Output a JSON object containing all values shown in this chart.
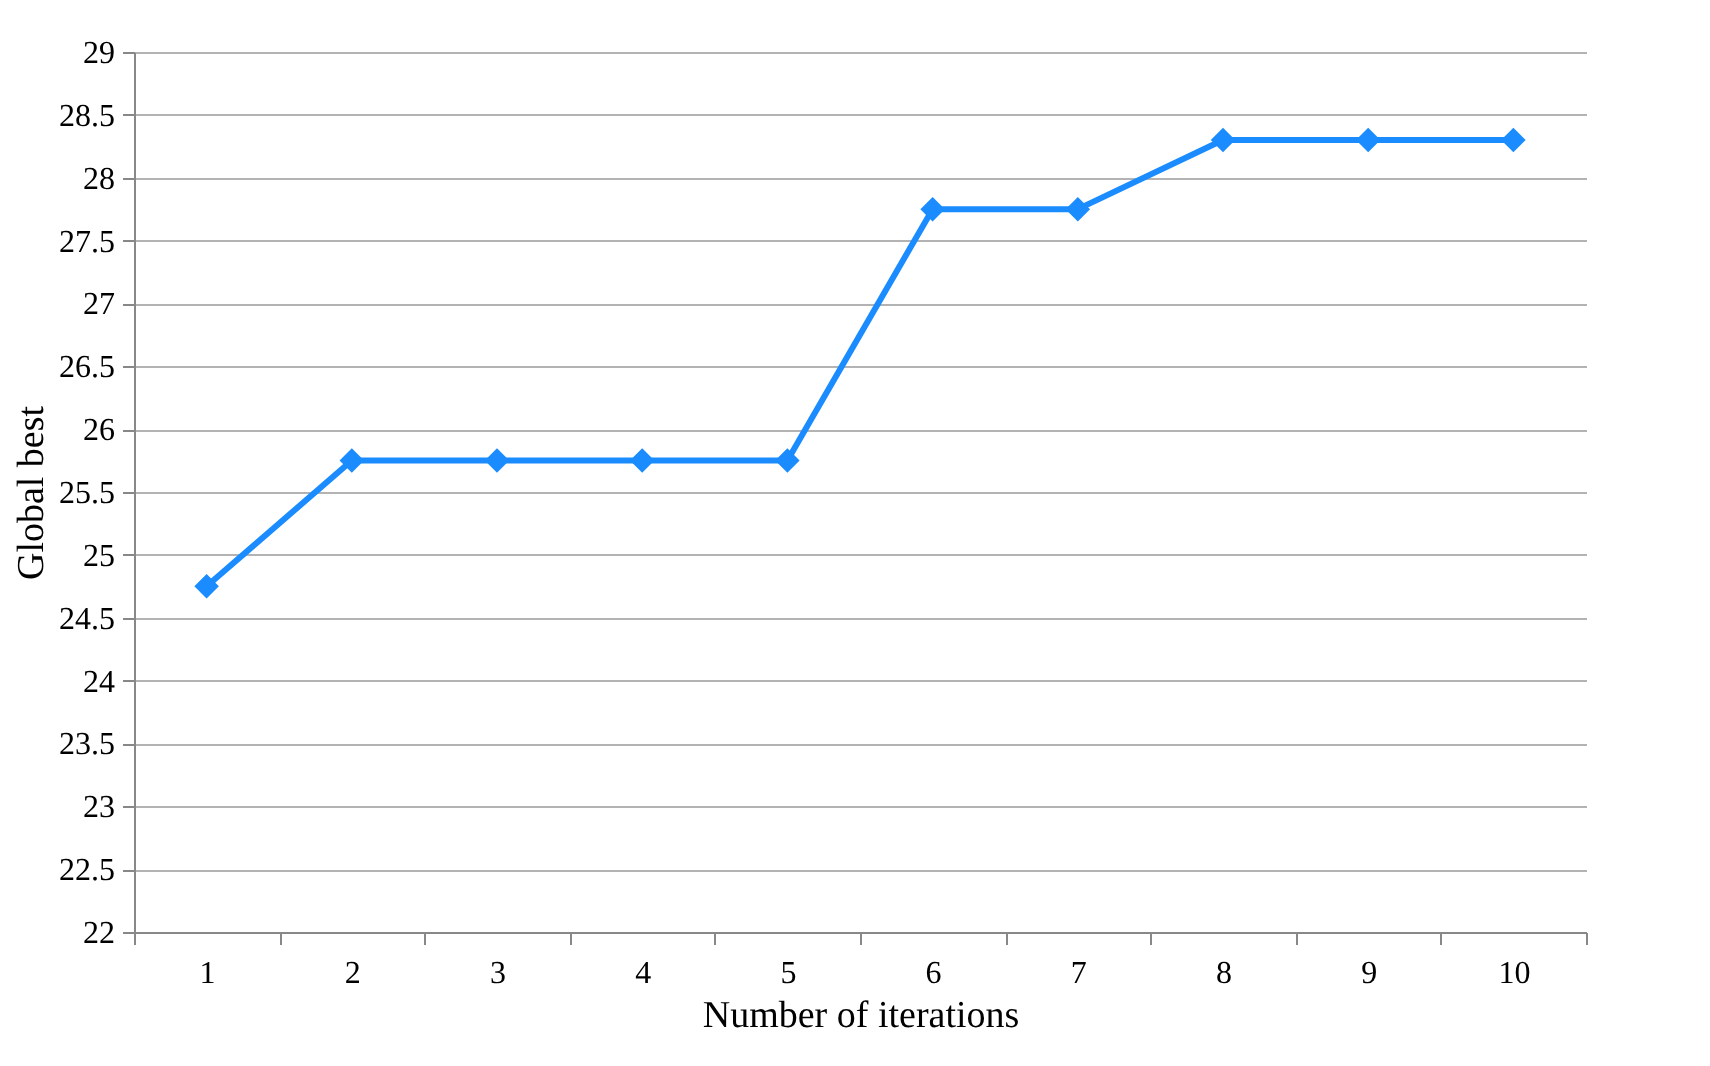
{
  "chart_data": {
    "type": "line",
    "xlabel": "Number of iterations",
    "ylabel": "Global best",
    "categories": [
      "1",
      "2",
      "3",
      "4",
      "5",
      "6",
      "7",
      "8",
      "9",
      "10"
    ],
    "series": [
      {
        "color": "#1a8cff",
        "values": [
          24.75,
          25.75,
          25.75,
          25.75,
          25.75,
          27.75,
          27.75,
          28.3,
          28.3,
          28.3
        ]
      }
    ],
    "ylim": [
      22,
      29
    ],
    "yticks": [
      22,
      22.5,
      23,
      23.5,
      24,
      24.5,
      25,
      25.5,
      26,
      26.5,
      27,
      27.5,
      28,
      28.5,
      29
    ],
    "grid": "y",
    "marker": "diamond",
    "line_style": "solid"
  }
}
